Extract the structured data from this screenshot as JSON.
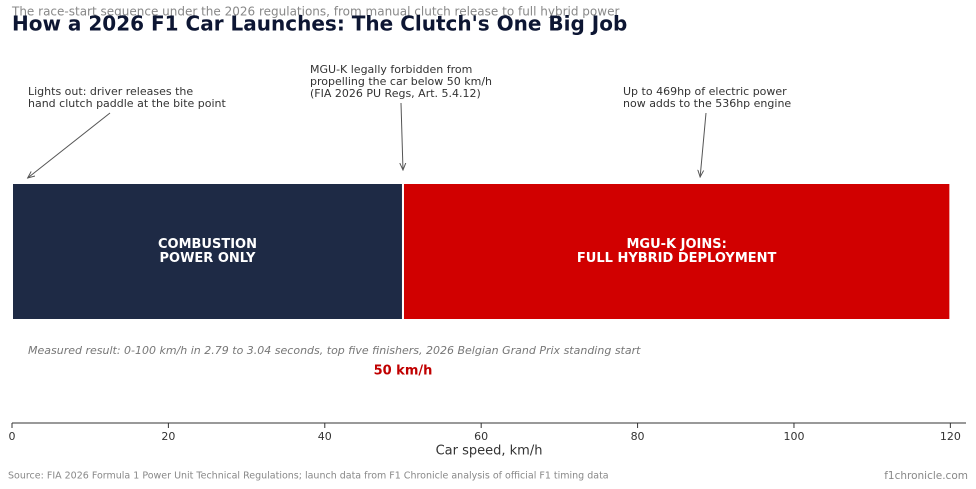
{
  "chart_data": {
    "type": "span",
    "title": "How a 2026 F1 Car Launches: The Clutch's One Big Job",
    "subtitle": "The race-start sequence under the 2026 regulations, from manual clutch release to full hybrid power",
    "xlabel": "Car speed, km/h",
    "xlim": [
      0,
      122
    ],
    "xticks": [
      0,
      20,
      40,
      60,
      80,
      100,
      120
    ],
    "segments": [
      {
        "lines": [
          "COMBUSTION",
          "POWER ONLY"
        ],
        "start": 0,
        "end": 50,
        "color": "#1e2a45"
      },
      {
        "lines": [
          "MGU-K JOINS:",
          "FULL HYBRID DEPLOYMENT"
        ],
        "start": 50,
        "end": 120,
        "color": "#d10000"
      }
    ],
    "annotations": [
      {
        "lines": [
          "Lights out: driver releases the",
          "hand clutch paddle at the bite point"
        ],
        "x": 2
      },
      {
        "lines": [
          "MGU-K legally forbidden from",
          "propelling the car below 50 km/h",
          "(FIA 2026 PU Regs, Art. 5.4.12)"
        ],
        "x": 50
      },
      {
        "lines": [
          "Up to 469hp of electric power",
          "now adds to the 536hp engine"
        ],
        "x": 88
      }
    ],
    "marker": {
      "text": "50 km/h",
      "x": 50,
      "color": "#c00000"
    },
    "note": "Measured result: 0-100 km/h in 2.79 to 3.04 seconds, top five finishers, 2026 Belgian Grand Prix standing start",
    "source": "Source: FIA 2026 Formula 1 Power Unit Technical Regulations; launch data from F1 Chronicle analysis of official F1 timing data",
    "credit": "f1chronicle.com"
  }
}
